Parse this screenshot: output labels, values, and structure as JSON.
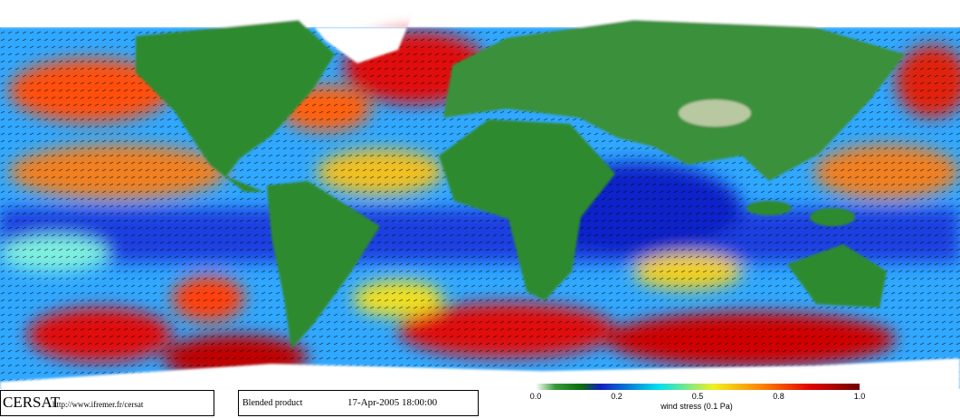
{
  "footer": {
    "logo": "CERSAT",
    "url": "http://www.ifremer.fr/cersat",
    "product": "Blended product",
    "date": "17-Apr-2005 18:00:00"
  },
  "colorbar": {
    "ticks": [
      "0.0",
      "0.2",
      "0.5",
      "0.8",
      "1.0"
    ],
    "label": "wind stress (0.1 Pa)"
  }
}
